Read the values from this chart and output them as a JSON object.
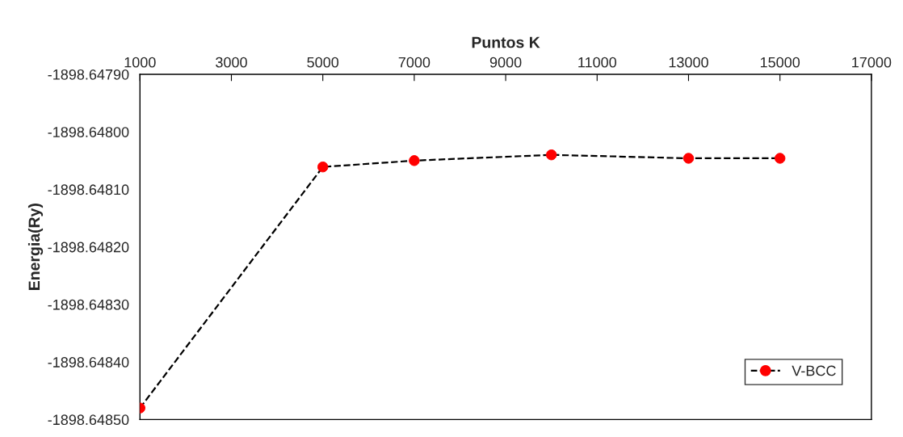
{
  "chart_data": {
    "type": "line",
    "xlabel": "Puntos K",
    "ylabel": "Energia(Ry)",
    "x": [
      1000,
      5000,
      7000,
      10000,
      13000,
      15000
    ],
    "series": [
      {
        "name": "V-BCC",
        "color": "#ff0000",
        "values": [
          -1898.64848,
          -1898.648061,
          -1898.64805,
          -1898.64804,
          -1898.648046,
          -1898.648046
        ]
      }
    ],
    "xlim": [
      1000,
      17000
    ],
    "xticks": [
      1000,
      3000,
      5000,
      7000,
      9000,
      11000,
      13000,
      15000,
      17000
    ],
    "ylim": [
      -1898.6485,
      -1898.6479
    ],
    "yticks": [
      {
        "value": -1898.6479,
        "label": "-1898.64790"
      },
      {
        "value": -1898.648,
        "label": "-1898.64800"
      },
      {
        "value": -1898.6481,
        "label": "-1898.64810"
      },
      {
        "value": -1898.6482,
        "label": "-1898.64820"
      },
      {
        "value": -1898.6483,
        "label": "-1898.64830"
      },
      {
        "value": -1898.6484,
        "label": "-1898.64840"
      },
      {
        "value": -1898.6485,
        "label": "-1898.64850"
      }
    ],
    "marker": "circle",
    "line_style": "dashed",
    "legend": "bottom right",
    "grid": false
  }
}
